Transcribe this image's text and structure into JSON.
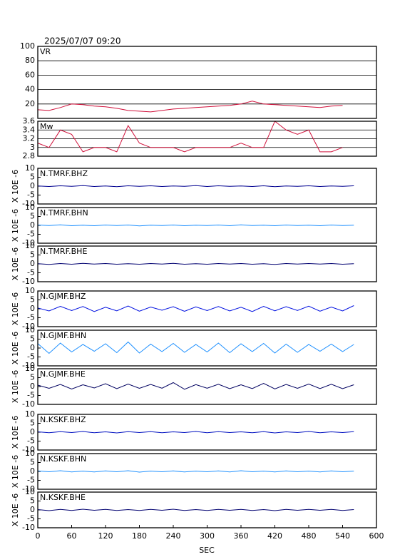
{
  "title": "2025/07/07 09:20",
  "x_axis": {
    "label": "SEC",
    "xlim": [
      0,
      600
    ],
    "xticks": [
      0,
      60,
      120,
      180,
      240,
      300,
      360,
      420,
      480,
      540,
      600
    ]
  },
  "chart_data": [
    {
      "type": "line",
      "label": "VR",
      "ylim": [
        0,
        100
      ],
      "yticks": [
        20,
        40,
        60,
        80,
        100
      ],
      "grid": true,
      "color": "#d0103a",
      "x": [
        0,
        20,
        40,
        60,
        80,
        100,
        120,
        140,
        160,
        180,
        200,
        220,
        240,
        260,
        280,
        300,
        320,
        340,
        360,
        380,
        400,
        420,
        440,
        460,
        480,
        500,
        520,
        540
      ],
      "values": [
        12,
        11,
        15,
        20,
        19,
        17,
        16,
        14,
        11,
        10,
        9,
        11,
        13,
        14,
        15,
        16,
        17,
        18,
        20,
        24,
        20,
        19,
        18,
        17,
        16,
        15,
        17,
        18
      ]
    },
    {
      "type": "line",
      "label": "Mw",
      "ylim": [
        2.8,
        3.6
      ],
      "yticks": [
        2.8,
        3.0,
        3.2,
        3.4,
        3.6
      ],
      "grid": true,
      "color": "#d0103a",
      "x": [
        0,
        20,
        40,
        60,
        80,
        100,
        120,
        140,
        160,
        180,
        200,
        220,
        240,
        260,
        280,
        300,
        320,
        340,
        360,
        380,
        400,
        420,
        440,
        460,
        480,
        500,
        520,
        540
      ],
      "values": [
        3.1,
        3.0,
        3.4,
        3.3,
        2.9,
        3.0,
        3.0,
        2.9,
        3.5,
        3.1,
        3.0,
        3.0,
        3.0,
        2.9,
        3.0,
        3.0,
        3.0,
        3.0,
        3.1,
        3.0,
        3.0,
        3.6,
        3.4,
        3.3,
        3.4,
        2.9,
        2.9,
        3.0
      ]
    },
    {
      "type": "line",
      "label": "N.TMRF.BHZ",
      "ylabel": "X 10E -6",
      "ylim": [
        -10,
        10
      ],
      "yticks": [
        -10,
        -5,
        0,
        5,
        10
      ],
      "grid": false,
      "color": "#000090",
      "x": [
        0,
        20,
        40,
        60,
        80,
        100,
        120,
        140,
        160,
        180,
        200,
        220,
        240,
        260,
        280,
        300,
        320,
        340,
        360,
        380,
        400,
        420,
        440,
        460,
        480,
        500,
        520,
        540,
        560
      ],
      "values": [
        0.1,
        -0.2,
        0.2,
        -0.1,
        0.3,
        -0.2,
        0.1,
        -0.3,
        0.2,
        -0.1,
        0.2,
        -0.2,
        0.1,
        -0.1,
        0.3,
        -0.2,
        0.2,
        -0.1,
        0.1,
        -0.2,
        0.2,
        -0.3,
        0.1,
        -0.1,
        0.2,
        -0.2,
        0.1,
        -0.1,
        0.2
      ]
    },
    {
      "type": "line",
      "label": "N.TMRF.BHN",
      "ylabel": "X 10E -6",
      "ylim": [
        -10,
        10
      ],
      "yticks": [
        -10,
        -5,
        0,
        5,
        10
      ],
      "grid": false,
      "color": "#1e90ff",
      "x": [
        0,
        20,
        40,
        60,
        80,
        100,
        120,
        140,
        160,
        180,
        200,
        220,
        240,
        260,
        280,
        300,
        320,
        340,
        360,
        380,
        400,
        420,
        440,
        460,
        480,
        500,
        520,
        540,
        560
      ],
      "values": [
        0.2,
        -0.1,
        0.3,
        -0.2,
        0.1,
        -0.2,
        0.2,
        -0.1,
        0.2,
        -0.3,
        0.1,
        -0.1,
        0.2,
        -0.2,
        0.1,
        -0.1,
        0.2,
        -0.2,
        0.3,
        -0.1,
        0.1,
        -0.2,
        0.2,
        -0.1,
        0.1,
        -0.2,
        0.2,
        -0.1,
        0.1
      ]
    },
    {
      "type": "line",
      "label": "N.TMRF.BHE",
      "ylabel": "X 10E -6",
      "ylim": [
        -10,
        10
      ],
      "yticks": [
        -10,
        -5,
        0,
        5,
        10
      ],
      "grid": false,
      "color": "#000070",
      "x": [
        0,
        20,
        40,
        60,
        80,
        100,
        120,
        140,
        160,
        180,
        200,
        220,
        240,
        260,
        280,
        300,
        320,
        340,
        360,
        380,
        400,
        420,
        440,
        460,
        480,
        500,
        520,
        540,
        560
      ],
      "values": [
        0.1,
        -0.3,
        0.2,
        -0.2,
        0.3,
        -0.1,
        0.2,
        -0.2,
        0.1,
        -0.2,
        0.2,
        -0.1,
        0.3,
        -0.2,
        0.1,
        -0.2,
        0.2,
        -0.1,
        0.2,
        -0.2,
        0.1,
        -0.3,
        0.2,
        -0.1,
        0.2,
        -0.1,
        0.2,
        -0.2,
        0.1
      ]
    },
    {
      "type": "line",
      "label": "N.GJMF.BHZ",
      "ylabel": "X 10E -6",
      "ylim": [
        -10,
        10
      ],
      "yticks": [
        -10,
        -5,
        0,
        5,
        10
      ],
      "grid": false,
      "color": "#0010e0",
      "x": [
        0,
        20,
        40,
        60,
        80,
        100,
        120,
        140,
        160,
        180,
        200,
        220,
        240,
        260,
        280,
        300,
        320,
        340,
        360,
        380,
        400,
        420,
        440,
        460,
        480,
        500,
        520,
        540,
        560
      ],
      "values": [
        0.5,
        -1.2,
        1.4,
        -1.0,
        1.3,
        -1.5,
        0.9,
        -1.1,
        1.6,
        -1.3,
        1.0,
        -0.8,
        1.2,
        -1.4,
        1.1,
        -1.0,
        1.3,
        -1.2,
        0.9,
        -1.5,
        1.4,
        -1.1,
        1.2,
        -0.9,
        1.5,
        -1.3,
        1.0,
        -1.2,
        1.8
      ]
    },
    {
      "type": "line",
      "label": "N.GJMF.BHN",
      "ylabel": "X 10E -6",
      "ylim": [
        -10,
        10
      ],
      "yticks": [
        -10,
        -5,
        0,
        5,
        10
      ],
      "grid": false,
      "color": "#1e90ff",
      "x": [
        0,
        20,
        40,
        60,
        80,
        100,
        120,
        140,
        160,
        180,
        200,
        220,
        240,
        260,
        280,
        300,
        320,
        340,
        360,
        380,
        400,
        420,
        440,
        460,
        480,
        500,
        520,
        540,
        560
      ],
      "values": [
        2.5,
        -3.0,
        2.8,
        -2.2,
        2.0,
        -1.8,
        2.4,
        -2.6,
        3.4,
        -2.8,
        2.2,
        -2.0,
        2.6,
        -2.4,
        2.0,
        -2.2,
        2.8,
        -2.6,
        2.4,
        -2.0,
        2.6,
        -2.8,
        2.2,
        -2.4,
        2.0,
        -1.8,
        2.2,
        -2.0,
        2.0
      ]
    },
    {
      "type": "line",
      "label": "N.GJMF.BHE",
      "ylabel": "X 10E -6",
      "ylim": [
        -10,
        10
      ],
      "yticks": [
        -10,
        -5,
        0,
        5,
        10
      ],
      "grid": false,
      "color": "#000060",
      "x": [
        0,
        20,
        40,
        60,
        80,
        100,
        120,
        140,
        160,
        180,
        200,
        220,
        240,
        260,
        280,
        300,
        320,
        340,
        360,
        380,
        400,
        420,
        440,
        460,
        480,
        500,
        520,
        540,
        560
      ],
      "values": [
        0.8,
        -1.0,
        1.2,
        -1.4,
        1.0,
        -0.8,
        1.6,
        -1.2,
        1.4,
        -1.0,
        1.2,
        -0.9,
        2.2,
        -1.5,
        1.1,
        -0.9,
        1.3,
        -1.2,
        1.0,
        -1.1,
        1.8,
        -1.3,
        1.2,
        -1.0,
        1.4,
        -1.1,
        1.3,
        -1.2,
        1.0
      ]
    },
    {
      "type": "line",
      "label": "N.KSKF.BHZ",
      "ylabel": "X 10E -6",
      "ylim": [
        -10,
        10
      ],
      "yticks": [
        -10,
        -5,
        0,
        5,
        10
      ],
      "grid": false,
      "color": "#0010c0",
      "x": [
        0,
        20,
        40,
        60,
        80,
        100,
        120,
        140,
        160,
        180,
        200,
        220,
        240,
        260,
        280,
        300,
        320,
        340,
        360,
        380,
        400,
        420,
        440,
        460,
        480,
        500,
        520,
        540,
        560
      ],
      "values": [
        0.2,
        -0.3,
        0.3,
        -0.2,
        0.4,
        -0.3,
        0.2,
        -0.4,
        0.3,
        -0.2,
        0.3,
        -0.3,
        0.2,
        -0.2,
        0.4,
        -0.3,
        0.3,
        -0.2,
        0.2,
        -0.3,
        0.3,
        -0.4,
        0.2,
        -0.2,
        0.4,
        -0.3,
        0.2,
        -0.2,
        0.3
      ]
    },
    {
      "type": "line",
      "label": "N.KSKF.BHN",
      "ylabel": "X 10E -6",
      "ylim": [
        -10,
        10
      ],
      "yticks": [
        -10,
        -5,
        0,
        5,
        10
      ],
      "grid": false,
      "color": "#1e90ff",
      "x": [
        0,
        20,
        40,
        60,
        80,
        100,
        120,
        140,
        160,
        180,
        200,
        220,
        240,
        260,
        280,
        300,
        320,
        340,
        360,
        380,
        400,
        420,
        440,
        460,
        480,
        500,
        520,
        540,
        560
      ],
      "values": [
        0.3,
        -0.2,
        0.4,
        -0.3,
        0.2,
        -0.3,
        0.3,
        -0.2,
        0.4,
        -0.4,
        0.2,
        -0.2,
        0.3,
        -0.3,
        0.2,
        -0.2,
        0.3,
        -0.3,
        0.4,
        -0.2,
        0.2,
        -0.3,
        0.3,
        -0.2,
        0.2,
        -0.3,
        0.3,
        -0.2,
        0.2
      ]
    },
    {
      "type": "line",
      "label": "N.KSKF.BHE",
      "ylabel": "X 10E -6",
      "ylim": [
        -10,
        10
      ],
      "yticks": [
        -10,
        -5,
        0,
        5,
        10
      ],
      "grid": false,
      "color": "#000070",
      "x": [
        0,
        20,
        40,
        60,
        80,
        100,
        120,
        140,
        160,
        180,
        200,
        220,
        240,
        260,
        280,
        300,
        320,
        340,
        360,
        380,
        400,
        420,
        440,
        460,
        480,
        500,
        520,
        540,
        560
      ],
      "values": [
        0.2,
        -0.4,
        0.3,
        -0.3,
        0.4,
        -0.2,
        0.3,
        -0.3,
        0.2,
        -0.3,
        0.3,
        -0.2,
        0.4,
        -0.3,
        0.2,
        -0.3,
        0.3,
        -0.2,
        0.3,
        -0.3,
        0.2,
        -0.4,
        0.3,
        -0.2,
        0.3,
        -0.2,
        0.3,
        -0.3,
        0.2
      ]
    }
  ]
}
